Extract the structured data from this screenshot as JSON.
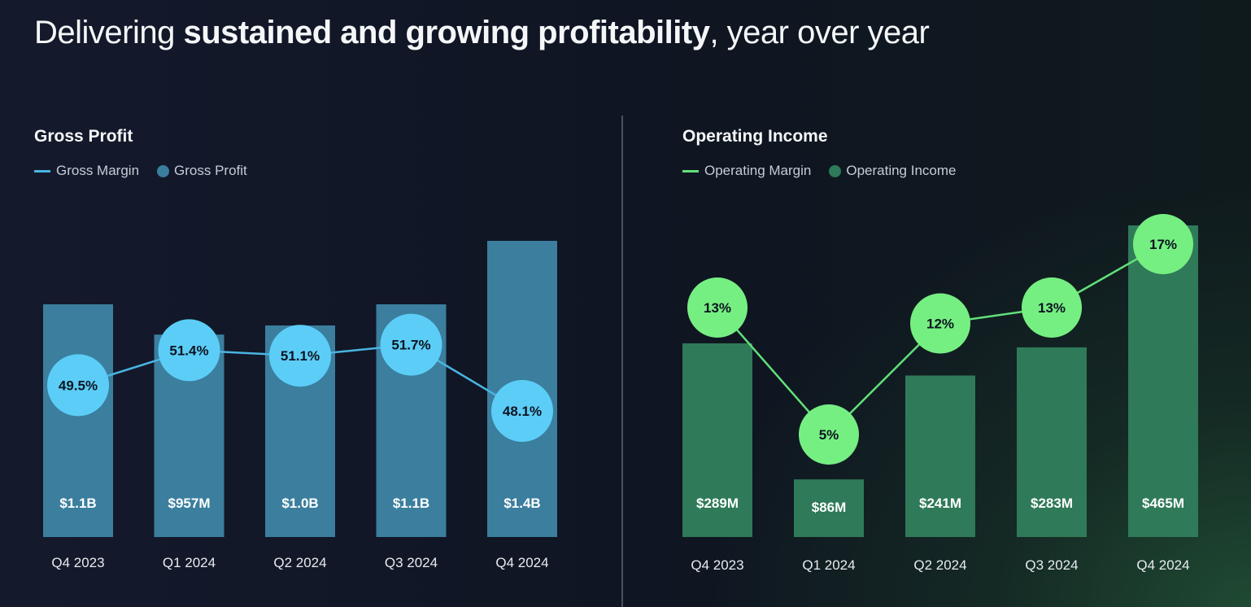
{
  "title": {
    "prefix": "Delivering ",
    "bold": "sustained and growing profitability",
    "suffix": ", year over year"
  },
  "colors": {
    "gp_bar": "#3b7e9e",
    "gp_line": "#4ab4e2",
    "gp_point": "#5ccdf7",
    "oi_bar": "#2f7a58",
    "oi_line": "#63e07a",
    "oi_point": "#76ef82"
  },
  "chart_data": [
    {
      "type": "bar",
      "title": "Gross Profit",
      "categories": [
        "Q4 2023",
        "Q1 2024",
        "Q2 2024",
        "Q3 2024",
        "Q4 2024"
      ],
      "series": [
        {
          "name": "Gross Profit",
          "type": "bar",
          "values": [
            1.1,
            0.957,
            1.0,
            1.1,
            1.4
          ],
          "labels": [
            "$1.1B",
            "$957M",
            "$1.0B",
            "$1.1B",
            "$1.4B"
          ]
        },
        {
          "name": "Gross Margin",
          "type": "line",
          "values": [
            49.5,
            51.4,
            51.1,
            51.7,
            48.1
          ],
          "labels": [
            "49.5%",
            "51.4%",
            "51.1%",
            "51.7%",
            "48.1%"
          ]
        }
      ],
      "legend": "top-left",
      "grid": false
    },
    {
      "type": "bar",
      "title": "Operating Income",
      "categories": [
        "Q4 2023",
        "Q1 2024",
        "Q2 2024",
        "Q3 2024",
        "Q4 2024"
      ],
      "series": [
        {
          "name": "Operating Income",
          "type": "bar",
          "values": [
            289,
            86,
            241,
            283,
            465
          ],
          "labels": [
            "$289M",
            "$86M",
            "$241M",
            "$283M",
            "$465M"
          ]
        },
        {
          "name": "Operating Margin",
          "type": "line",
          "values": [
            13,
            5,
            12,
            13,
            17
          ],
          "labels": [
            "13%",
            "5%",
            "12%",
            "13%",
            "17%"
          ]
        }
      ],
      "legend": "top-left",
      "grid": false
    }
  ]
}
